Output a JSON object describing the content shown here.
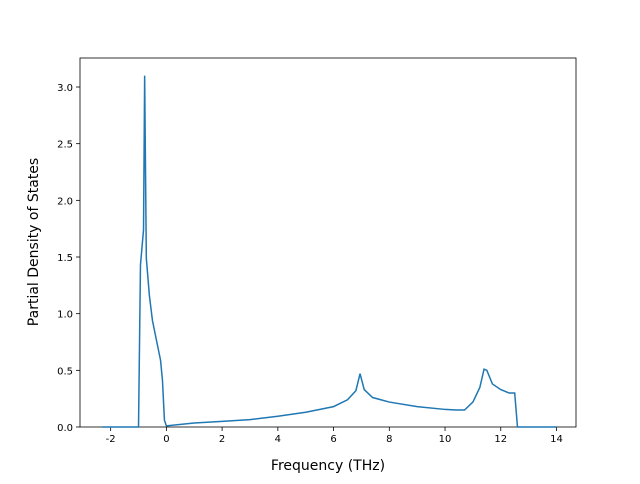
{
  "chart_data": {
    "type": "line",
    "x_label": "Frequency (THz)",
    "y_label": "Partial Density of States",
    "xlim": [
      -3.1,
      14.7
    ],
    "ylim": [
      0,
      3.256
    ],
    "xticks": [
      -2,
      0,
      2,
      4,
      6,
      8,
      10,
      12,
      14
    ],
    "yticks": [
      {
        "value": 0,
        "label": "0.0"
      },
      {
        "value": 0.5,
        "label": "0.5"
      },
      {
        "value": 1,
        "label": "1.0"
      },
      {
        "value": 1.5,
        "label": "1.5"
      },
      {
        "value": 2,
        "label": "2.0"
      },
      {
        "value": 2.5,
        "label": "2.5"
      },
      {
        "value": 3,
        "label": "3.0"
      }
    ],
    "color": "#1f77b4",
    "x": [
      -2.3,
      -1.0,
      -0.93,
      -0.82,
      -0.78,
      -0.72,
      -0.61,
      -0.5,
      -0.36,
      -0.21,
      -0.14,
      -0.07,
      0,
      1,
      2,
      3,
      4,
      5,
      6,
      6.5,
      6.8,
      6.95,
      7.1,
      7.4,
      8,
      9,
      10,
      10.4,
      10.7,
      11.0,
      11.25,
      11.4,
      11.5,
      11.7,
      12,
      12.3,
      12.5,
      12.6,
      14
    ],
    "values": [
      0,
      0,
      1.43,
      1.74,
      3.1,
      1.49,
      1.16,
      0.94,
      0.77,
      0.59,
      0.41,
      0.06,
      0.01,
      0.035,
      0.05,
      0.065,
      0.095,
      0.13,
      0.18,
      0.24,
      0.32,
      0.47,
      0.33,
      0.26,
      0.22,
      0.18,
      0.155,
      0.15,
      0.15,
      0.22,
      0.35,
      0.51,
      0.5,
      0.38,
      0.33,
      0.3,
      0.3,
      0,
      0
    ]
  }
}
